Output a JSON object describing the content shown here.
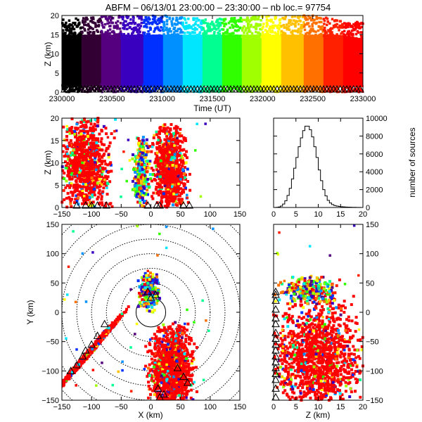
{
  "title": "ABFM – 06/13/01 23:00:00 – 23:30:00 – nb loc.=  97754",
  "colors": {
    "palette": [
      "#000000",
      "#330033",
      "#55007f",
      "#3a00c0",
      "#0030ff",
      "#0090ff",
      "#00e6ff",
      "#00ff90",
      "#30ff00",
      "#a0ff00",
      "#ffff00",
      "#ffc000",
      "#ff7000",
      "#ff2000",
      "#ff0000"
    ],
    "late_red": "#ff0000",
    "ring": "#000000",
    "hist_line": "#000000"
  },
  "chart_data": [
    {
      "type": "scatter",
      "panel": "time-height",
      "title": "ABFM – 06/13/01 23:00:00 – 23:30:00 – nb loc.=  97754",
      "xlabel": "Time (UT)",
      "ylabel": "Z (km)",
      "xlim": [
        230000,
        233000
      ],
      "ylim": [
        0,
        20
      ],
      "xticks": [
        "230000",
        "230500",
        "231000",
        "231500",
        "232000",
        "232500",
        "233000"
      ],
      "yticks": [
        "0",
        "5",
        "10",
        "15",
        "20"
      ],
      "color_encodes": "time",
      "series": [
        {
          "x": [
            230000,
            230500,
            231000,
            231500,
            232000,
            232500,
            233000
          ],
          "y_min": [
            0,
            0,
            0,
            0,
            0,
            0,
            0
          ],
          "y_max": [
            19,
            20,
            20,
            19,
            20,
            20,
            18
          ]
        }
      ]
    },
    {
      "type": "scatter",
      "panel": "x-z",
      "xlabel": "",
      "ylabel": "Z (km)",
      "xlim": [
        -150,
        150
      ],
      "ylim": [
        0,
        20
      ],
      "xticks": [
        "−150",
        "−100",
        "−50",
        "0",
        "50",
        "100",
        "150"
      ],
      "yticks": [
        "0",
        "5",
        "10",
        "15",
        "20"
      ],
      "clusters": [
        {
          "x": [
            -150,
            -70
          ],
          "z": [
            0,
            20
          ],
          "dominant": "red"
        },
        {
          "x": [
            -30,
            -2
          ],
          "z": [
            1,
            15
          ],
          "dominant": "mixed"
        },
        {
          "x": [
            5,
            60
          ],
          "z": [
            1,
            17
          ],
          "dominant": "red"
        }
      ],
      "stations_x": [
        -125,
        -110,
        -100,
        -90,
        -75,
        -5,
        10,
        15,
        55,
        65
      ]
    },
    {
      "type": "bar",
      "panel": "height-histogram",
      "xlabel": "",
      "ylabel": "number of sources",
      "xlim": [
        0,
        20
      ],
      "ylim": [
        0,
        10000
      ],
      "xticks": [
        "0",
        "5",
        "10",
        "15",
        "20"
      ],
      "yticks": [
        "0",
        "2000",
        "4000",
        "6000",
        "8000",
        "10000"
      ],
      "bin_width_km": 0.5,
      "bin_start_km": 0,
      "values": [
        0,
        20,
        60,
        160,
        380,
        750,
        1350,
        2150,
        3200,
        4400,
        5600,
        6800,
        7800,
        8600,
        9100,
        9100,
        8700,
        7900,
        6800,
        5600,
        4200,
        3000,
        2000,
        1300,
        800,
        500,
        320,
        220,
        160,
        120,
        90,
        70,
        50,
        40,
        30,
        20,
        15,
        10,
        5,
        3
      ]
    },
    {
      "type": "scatter",
      "panel": "plan-view",
      "xlabel": "X (km)",
      "ylabel": "Y (km)",
      "xlim": [
        -150,
        150
      ],
      "ylim": [
        -150,
        150
      ],
      "xticks": [
        "−150",
        "−100",
        "−50",
        "0",
        "50",
        "100",
        "150"
      ],
      "yticks": [
        "−150",
        "−100",
        "−50",
        "0",
        "50",
        "100",
        "150"
      ],
      "range_rings_km": [
        25,
        50,
        75,
        100,
        125,
        150,
        175,
        200
      ],
      "clusters": [
        {
          "x": [
            -150,
            -60
          ],
          "y": [
            -130,
            -5
          ],
          "dominant": "red"
        },
        {
          "x": [
            -20,
            15
          ],
          "y": [
            10,
            60
          ],
          "dominant": "mixed"
        },
        {
          "x": [
            0,
            70
          ],
          "y": [
            -150,
            -40
          ],
          "dominant": "red"
        }
      ],
      "stations": [
        [
          -78,
          -20
        ],
        [
          -90,
          -40
        ],
        [
          -100,
          -55
        ],
        [
          -110,
          -65
        ],
        [
          -115,
          -75
        ],
        [
          -125,
          -90
        ],
        [
          -135,
          -100
        ],
        [
          -5,
          35
        ],
        [
          0,
          25
        ],
        [
          8,
          30
        ],
        [
          12,
          -130
        ],
        [
          15,
          -145
        ],
        [
          22,
          -140
        ],
        [
          45,
          -95
        ],
        [
          55,
          -110
        ],
        [
          62,
          -120
        ]
      ]
    },
    {
      "type": "scatter",
      "panel": "z-y",
      "xlabel": "Z (km)",
      "ylabel": "",
      "xlim": [
        0,
        20
      ],
      "ylim": [
        -150,
        150
      ],
      "xticks": [
        "0",
        "5",
        "10",
        "15",
        "20"
      ],
      "yticks": [
        "−150",
        "−100",
        "−50",
        "0",
        "50",
        "100",
        "150"
      ],
      "clusters": [
        {
          "z": [
            0,
            20
          ],
          "y": [
            -150,
            0
          ],
          "dominant": "red"
        },
        {
          "z": [
            2,
            14
          ],
          "y": [
            20,
            55
          ],
          "dominant": "mixed"
        }
      ],
      "stations_y": [
        -145,
        -130,
        -115,
        -105,
        -95,
        -85,
        -75,
        -65,
        -55,
        -45,
        -35,
        -20,
        -10,
        5,
        20,
        30,
        35
      ]
    }
  ]
}
